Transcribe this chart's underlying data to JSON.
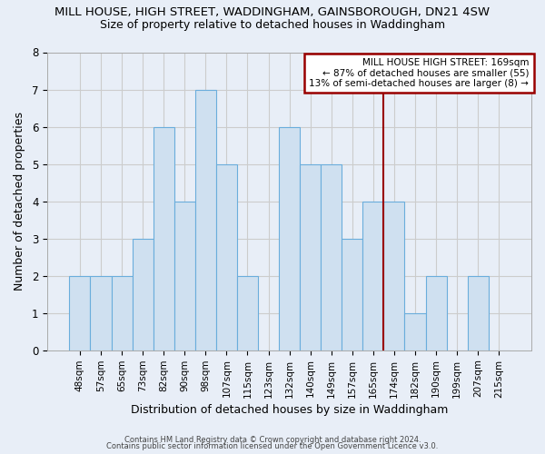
{
  "title": "MILL HOUSE, HIGH STREET, WADDINGHAM, GAINSBOROUGH, DN21 4SW",
  "subtitle": "Size of property relative to detached houses in Waddingham",
  "xlabel": "Distribution of detached houses by size in Waddingham",
  "ylabel": "Number of detached properties",
  "bar_labels": [
    "48sqm",
    "57sqm",
    "65sqm",
    "73sqm",
    "82sqm",
    "90sqm",
    "98sqm",
    "107sqm",
    "115sqm",
    "123sqm",
    "132sqm",
    "140sqm",
    "149sqm",
    "157sqm",
    "165sqm",
    "174sqm",
    "182sqm",
    "190sqm",
    "199sqm",
    "207sqm",
    "215sqm"
  ],
  "bar_values": [
    2,
    2,
    2,
    3,
    6,
    4,
    7,
    5,
    2,
    0,
    6,
    5,
    5,
    3,
    4,
    4,
    1,
    2,
    0,
    2,
    0
  ],
  "bar_color": "#cfe0f0",
  "bar_edge_color": "#6aaddc",
  "bar_linewidth": 0.8,
  "vline_color": "#990000",
  "vline_linewidth": 1.5,
  "annotation_text": "MILL HOUSE HIGH STREET: 169sqm\n← 87% of detached houses are smaller (55)\n13% of semi-detached houses are larger (8) →",
  "annotation_box_color": "#ffffff",
  "annotation_box_edge": "#990000",
  "ylim": [
    0,
    8
  ],
  "yticks": [
    0,
    1,
    2,
    3,
    4,
    5,
    6,
    7,
    8
  ],
  "grid_color": "#cccccc",
  "plot_bg_color": "#e8eef7",
  "fig_bg_color": "#e8eef7",
  "footnote1": "Contains HM Land Registry data © Crown copyright and database right 2024.",
  "footnote2": "Contains public sector information licensed under the Open Government Licence v3.0.",
  "title_fontsize": 9.5,
  "subtitle_fontsize": 9
}
